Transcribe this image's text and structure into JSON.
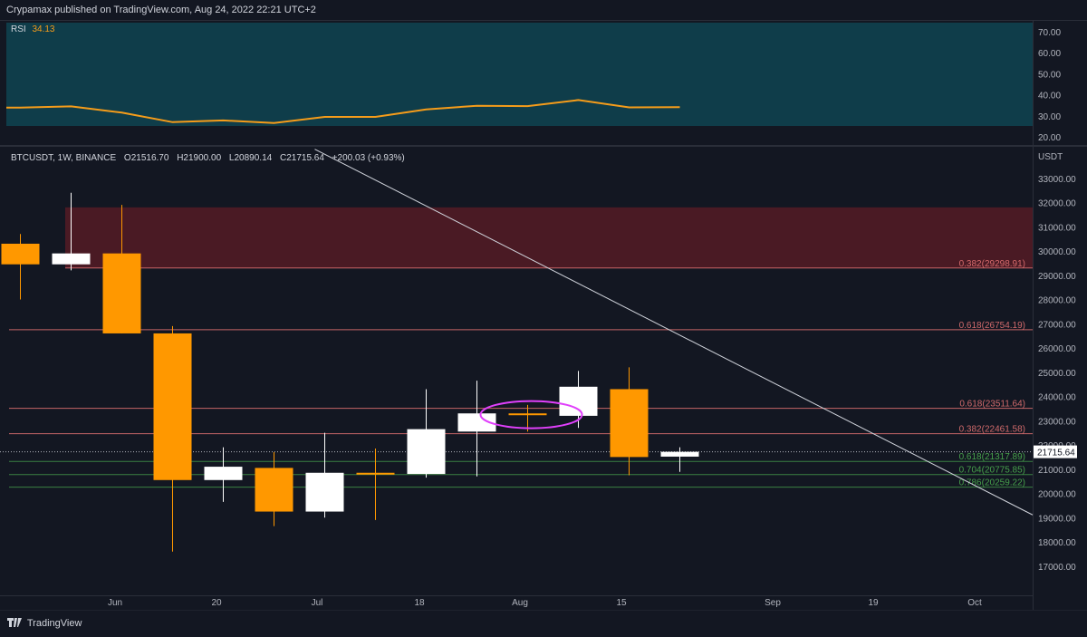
{
  "header": {
    "publish_line": "Crypamax published on TradingView.com, Aug 24, 2022 22:21 UTC+2"
  },
  "rsi": {
    "label": "RSI",
    "value": "34.13",
    "axis_ticks": [
      "70.00",
      "60.00",
      "50.00",
      "40.00",
      "30.00",
      "20.00"
    ],
    "colors": {
      "band": "#0f3d4a",
      "line": "#f59c1a"
    }
  },
  "ohlc": {
    "symbol": "BTCUSDT, 1W, BINANCE",
    "open": "O21516.70",
    "high": "H21900.00",
    "low": "L20890.14",
    "close": "C21715.64",
    "change": "+200.03 (+0.93%)"
  },
  "price_axis": {
    "unit": "USDT",
    "ticks": [
      "33000.00",
      "32000.00",
      "31000.00",
      "30000.00",
      "29000.00",
      "28000.00",
      "27000.00",
      "26000.00",
      "25000.00",
      "24000.00",
      "23000.00",
      "22000.00",
      "21000.00",
      "20000.00",
      "19000.00",
      "18000.00",
      "17000.00"
    ],
    "last_price": "21715.64"
  },
  "time_axis": {
    "labels": [
      "Jun",
      "20",
      "Jul",
      "18",
      "Aug",
      "15",
      "Sep",
      "19",
      "Oct"
    ]
  },
  "colors": {
    "background": "#131722",
    "bull": "#ffffff",
    "bear": "#ff9800",
    "resistance_zone": "#4a1a24",
    "fib_red": "#e57373",
    "fib_green": "#4caf50",
    "trendline": "#d1d4dc",
    "highlight": "#e040fb"
  },
  "footer": {
    "brand": "TradingView"
  },
  "chart_data": [
    {
      "type": "candlestick",
      "title": "BTCUSDT, 1W, BINANCE",
      "ylabel": "USDT",
      "ylim": [
        16000,
        33500
      ],
      "x_labels": [
        "Jun",
        "20",
        "Jul",
        "18",
        "Aug",
        "15",
        "Sep",
        "19",
        "Oct"
      ],
      "candles": [
        {
          "x": 0,
          "open": 30300,
          "high": 30700,
          "low": 28000,
          "close": 29450
        },
        {
          "x": 1,
          "open": 29450,
          "high": 32400,
          "low": 29200,
          "close": 29900
        },
        {
          "x": 2,
          "open": 29900,
          "high": 31900,
          "low": 26600,
          "close": 26600
        },
        {
          "x": 3,
          "open": 26600,
          "high": 26900,
          "low": 17600,
          "close": 20550
        },
        {
          "x": 4,
          "open": 20550,
          "high": 21900,
          "low": 19650,
          "close": 21100
        },
        {
          "x": 5,
          "open": 21050,
          "high": 21700,
          "low": 18650,
          "close": 19250
        },
        {
          "x": 6,
          "open": 19250,
          "high": 22500,
          "low": 19000,
          "close": 20850
        },
        {
          "x": 7,
          "open": 20850,
          "high": 21850,
          "low": 18900,
          "close": 20800
        },
        {
          "x": 8,
          "open": 20800,
          "high": 24300,
          "low": 20650,
          "close": 22650
        },
        {
          "x": 9,
          "open": 22550,
          "high": 24650,
          "low": 20700,
          "close": 23300
        },
        {
          "x": 10,
          "open": 23300,
          "high": 23650,
          "low": 22550,
          "close": 23250
        },
        {
          "x": 11,
          "open": 23200,
          "high": 25050,
          "low": 22700,
          "close": 24400
        },
        {
          "x": 12,
          "open": 24300,
          "high": 25200,
          "low": 20750,
          "close": 21500
        },
        {
          "x": 13,
          "open": 21516.7,
          "high": 21900,
          "low": 20890.14,
          "close": 21715.64
        }
      ],
      "resistance_zone": {
        "from": 29300,
        "to": 31800
      },
      "fib_levels": [
        {
          "label": "0.382(29298.91)",
          "value": 29298.91,
          "color": "red"
        },
        {
          "label": "0.618(26754.19)",
          "value": 26754.19,
          "color": "red"
        },
        {
          "label": "0.618(23511.64)",
          "value": 23511.64,
          "color": "red"
        },
        {
          "label": "0.382(22461.58)",
          "value": 22461.58,
          "color": "red"
        },
        {
          "label": "0.618(21317.89)",
          "value": 21317.89,
          "color": "green"
        },
        {
          "label": "0.704(20775.85)",
          "value": 20775.85,
          "color": "green"
        },
        {
          "label": "0.786(20259.22)",
          "value": 20259.22,
          "color": "green"
        }
      ],
      "trendline": {
        "from": {
          "x": 7,
          "y": 34200
        },
        "to": {
          "x": 24,
          "y": 19000
        }
      },
      "highlight": {
        "x": 10,
        "y": 23250
      }
    },
    {
      "type": "line",
      "title": "RSI",
      "ylim": [
        20,
        72
      ],
      "values": [
        33.9,
        34.5,
        31.5,
        27.0,
        27.8,
        26.6,
        29.5,
        29.5,
        33.0,
        34.8,
        34.6,
        37.5,
        34.0,
        34.13
      ]
    }
  ]
}
